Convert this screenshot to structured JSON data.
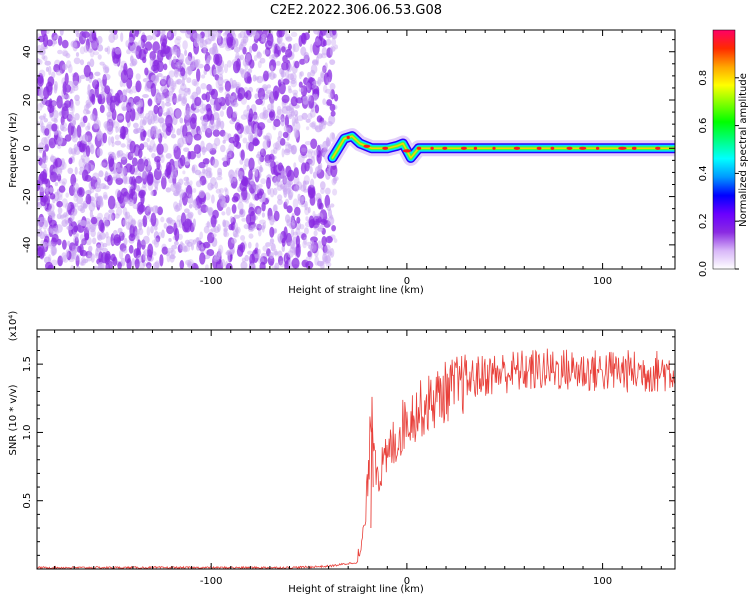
{
  "title": "C2E2.2022.306.06.53.G08",
  "chart_data": [
    {
      "type": "heatmap",
      "name": "spectrogram",
      "xlabel": "Height of straight line (km)",
      "ylabel": "Frequency (Hz)",
      "xlim": [
        -189,
        137
      ],
      "ylim": [
        -50,
        49
      ],
      "xticks": [
        -100,
        0,
        100
      ],
      "yticks": [
        -40,
        -20,
        0,
        20,
        40
      ],
      "colorbar": {
        "label": "Normalized spectral amplitude",
        "range": [
          0,
          1
        ],
        "ticks": [
          "0.0",
          "0.2",
          "0.4",
          "0.6",
          "0.8"
        ],
        "colormap": [
          "#ffffff",
          "#d8b6f8",
          "#8a2be2",
          "#6a00ff",
          "#0000ff",
          "#0099ff",
          "#00ffff",
          "#00ff80",
          "#00ff00",
          "#80ff00",
          "#ffff00",
          "#ffa500",
          "#ff2a00",
          "#ff0066"
        ]
      },
      "noise_region": {
        "x_from": -189,
        "x_to": -36,
        "color": "#8a2be2"
      },
      "signal_track": {
        "x": [
          -38,
          -35,
          -32,
          -28,
          -24,
          -18,
          -10,
          -5,
          -2,
          2,
          6,
          12,
          20,
          30,
          45,
          60,
          80,
          100,
          120,
          137
        ],
        "y": [
          -4,
          0,
          4,
          5,
          2,
          0,
          0,
          1,
          2,
          -4,
          0,
          0,
          0,
          0,
          0,
          0,
          0,
          0,
          0,
          0
        ]
      }
    },
    {
      "type": "line",
      "name": "snr",
      "xlabel": "Height of straight line (km)",
      "ylabel": "SNR (10 * v/v)",
      "scale_label": "(x10⁴)",
      "xlim": [
        -189,
        137
      ],
      "ylim": [
        0,
        1.75
      ],
      "xticks": [
        -100,
        0,
        100
      ],
      "yticks": [
        "0.5",
        "1.0",
        "1.5"
      ],
      "color": "#e8403a",
      "series": [
        {
          "x": [
            -189,
            -150,
            -100,
            -60,
            -40,
            -25,
            -22,
            -20,
            -18,
            -16,
            -14,
            -12,
            -10,
            -8,
            -5,
            -2,
            0,
            5,
            10,
            15,
            20,
            25,
            30,
            35,
            40,
            50,
            60,
            70,
            80,
            90,
            100,
            110,
            120,
            130,
            137
          ],
          "y": [
            0.01,
            0.01,
            0.01,
            0.01,
            0.02,
            0.05,
            0.25,
            0.6,
            1.2,
            0.8,
            0.7,
            0.75,
            0.8,
            0.9,
            0.95,
            1.05,
            1.1,
            1.15,
            1.2,
            1.25,
            1.3,
            1.33,
            1.37,
            1.4,
            1.42,
            1.44,
            1.45,
            1.46,
            1.46,
            1.45,
            1.45,
            1.45,
            1.44,
            1.45,
            1.45
          ]
        }
      ]
    }
  ]
}
